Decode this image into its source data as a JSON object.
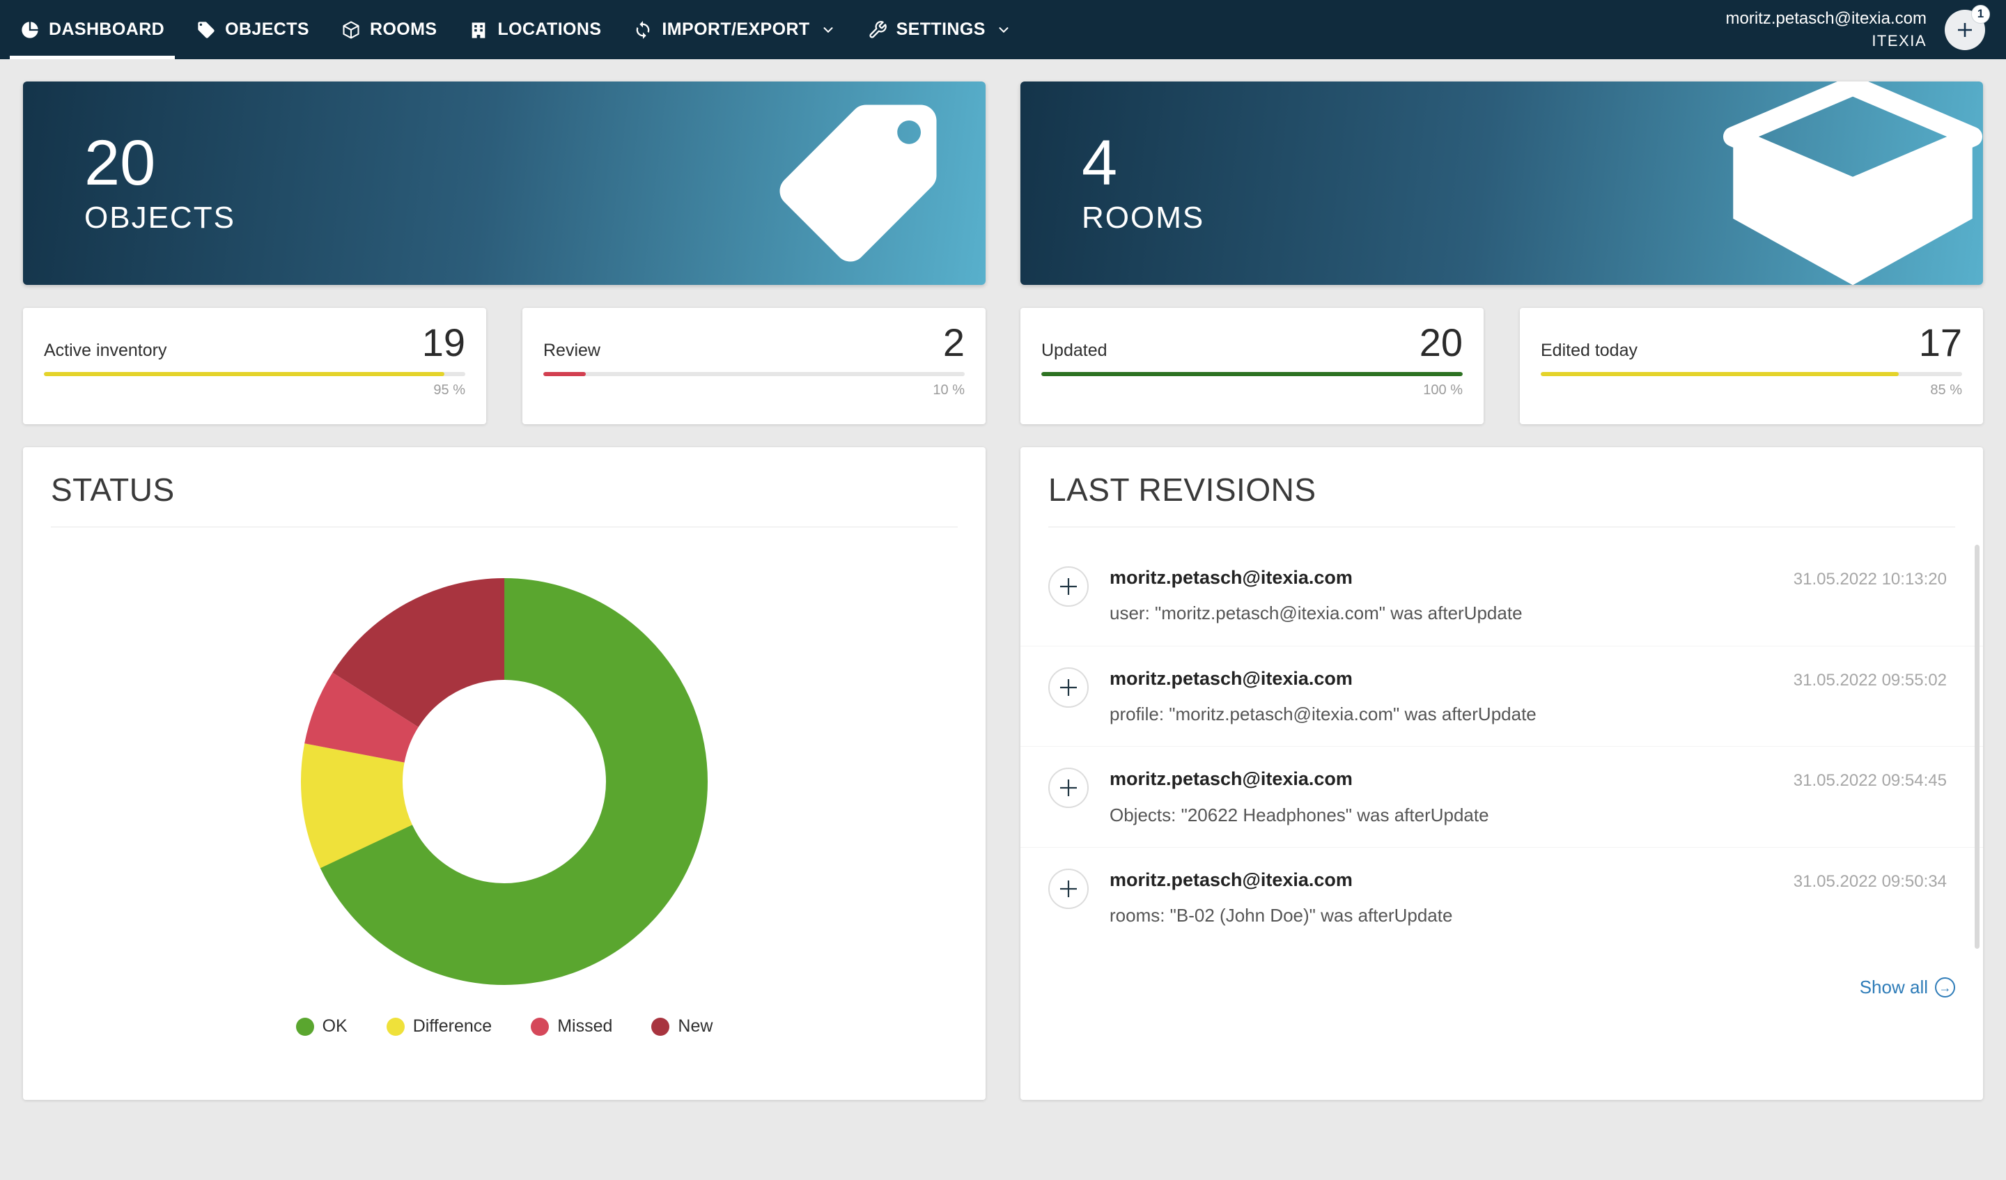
{
  "theme": {
    "navbar_bg": "#102b3d",
    "hero_gradient_start": "#14344a",
    "hero_gradient_end": "#58b0cc",
    "background": "#e9e9e9",
    "link_color": "#2e7cb8"
  },
  "navbar": {
    "items": [
      {
        "label": "DASHBOARD",
        "icon": "pie-chart",
        "active": true
      },
      {
        "label": "OBJECTS",
        "icon": "tag"
      },
      {
        "label": "ROOMS",
        "icon": "cube"
      },
      {
        "label": "LOCATIONS",
        "icon": "building"
      },
      {
        "label": "IMPORT/EXPORT",
        "icon": "sync",
        "dropdown": true
      },
      {
        "label": "SETTINGS",
        "icon": "wrench",
        "dropdown": true
      }
    ],
    "user_email": "moritz.petasch@itexia.com",
    "account_name": "ITEXIA",
    "notification_count": "1"
  },
  "summary_cards": {
    "objects": {
      "count": "20",
      "label": "OBJECTS"
    },
    "rooms": {
      "count": "4",
      "label": "ROOMS"
    }
  },
  "stat_cards": [
    {
      "label": "Active inventory",
      "value": "19",
      "percent_label": "95 %",
      "percent_value": 95,
      "bar_color": "#e4d32a"
    },
    {
      "label": "Review",
      "value": "2",
      "percent_label": "10 %",
      "percent_value": 10,
      "bar_color": "#d23f50"
    },
    {
      "label": "Updated",
      "value": "20",
      "percent_label": "100 %",
      "percent_value": 100,
      "bar_color": "#2d7222"
    },
    {
      "label": "Edited today",
      "value": "17",
      "percent_label": "85 %",
      "percent_value": 85,
      "bar_color": "#e4d32a"
    }
  ],
  "status_panel": {
    "title": "STATUS"
  },
  "chart_data": {
    "type": "pie",
    "donut": true,
    "title": "STATUS",
    "labels": [
      "OK",
      "Difference",
      "Missed",
      "New"
    ],
    "values": [
      68,
      10,
      6,
      16
    ],
    "unit": "percent",
    "colors": [
      "#5aa62f",
      "#efe13a",
      "#d5485a",
      "#a8343f"
    ],
    "legend_position": "bottom"
  },
  "revisions_panel": {
    "title": "LAST REVISIONS",
    "show_all_label": "Show all",
    "items": [
      {
        "email": "moritz.petasch@itexia.com",
        "description": "user: \"moritz.petasch@itexia.com\" was afterUpdate",
        "timestamp": "31.05.2022 10:13:20"
      },
      {
        "email": "moritz.petasch@itexia.com",
        "description": "profile: \"moritz.petasch@itexia.com\" was afterUpdate",
        "timestamp": "31.05.2022 09:55:02"
      },
      {
        "email": "moritz.petasch@itexia.com",
        "description": "Objects: \"20622 Headphones\" was afterUpdate",
        "timestamp": "31.05.2022 09:54:45"
      },
      {
        "email": "moritz.petasch@itexia.com",
        "description": "rooms: \"B-02 (John Doe)\" was afterUpdate",
        "timestamp": "31.05.2022 09:50:34"
      }
    ]
  }
}
